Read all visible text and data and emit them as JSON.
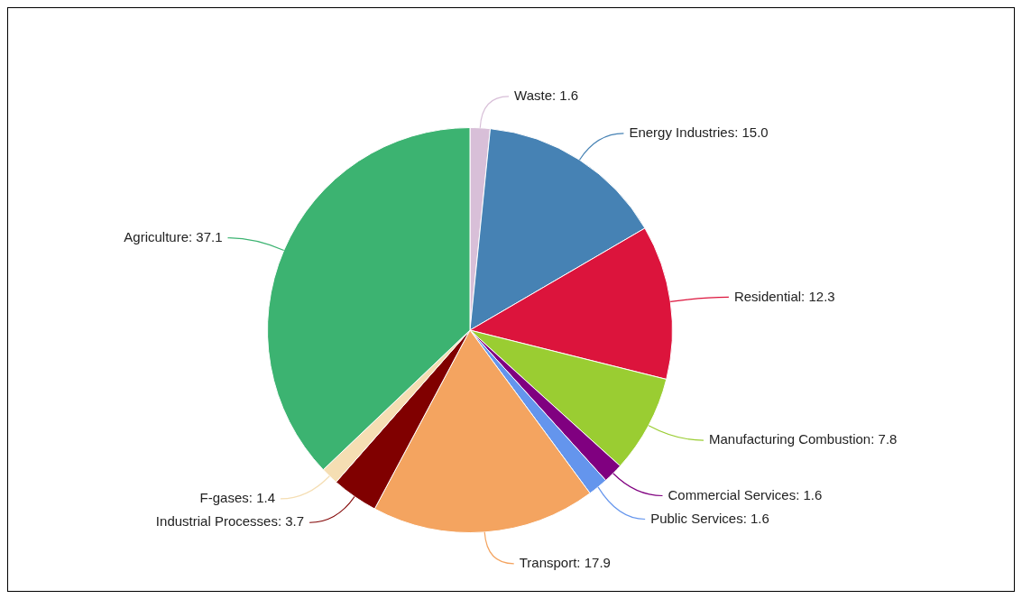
{
  "chart_data": {
    "type": "pie",
    "categories": [
      "Waste",
      "Energy Industries",
      "Residential",
      "Manufacturing Combustion",
      "Commercial Services",
      "Public Services",
      "Transport",
      "Industrial Processes",
      "F-gases",
      "Agriculture"
    ],
    "values": [
      1.6,
      15.0,
      12.3,
      7.8,
      1.6,
      1.6,
      17.9,
      3.7,
      1.4,
      37.1
    ],
    "value_labels": [
      "1.6",
      "15.0",
      "12.3",
      "7.8",
      "1.6",
      "1.6",
      "17.9",
      "3.7",
      "1.4",
      "37.1"
    ],
    "colors": [
      "#d8bfd8",
      "#4682b4",
      "#dc143c",
      "#9acd32",
      "#800080",
      "#6495ed",
      "#f4a460",
      "#800000",
      "#f5deb3",
      "#3cb371"
    ],
    "legend": false
  }
}
